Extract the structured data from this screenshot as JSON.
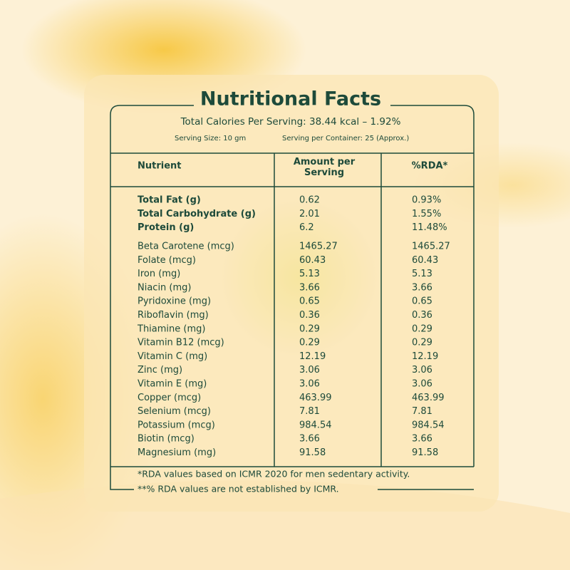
{
  "title": "Nutritional Facts",
  "subtitle": "Total Calories Per Serving: 38.44 kcal – 1.92%",
  "serving_size": "Serving Size: 10 gm",
  "servings_per_container": "Serving per Container: 25 (Approx.)",
  "table": {
    "headers": [
      "Nutrient",
      "Amount per Serving",
      "%RDA*"
    ],
    "rows": [
      [
        "Total Fat (g)",
        "0.62",
        "0.93%"
      ],
      [
        "Total Carbohydrate (g)",
        "2.01",
        "1.55%"
      ],
      [
        "Protein (g)",
        "6.2",
        "11.48%"
      ],
      [
        "Beta Carotene (mcg)",
        "1465.27",
        "1465.27"
      ],
      [
        "Folate (mcg)",
        "60.43",
        "60.43"
      ],
      [
        "Iron (mg)",
        "5.13",
        "5.13"
      ],
      [
        "Niacin (mg)",
        "3.66",
        "3.66"
      ],
      [
        "Pyridoxine (mg)",
        "0.65",
        "0.65"
      ],
      [
        "Riboflavin (mg)",
        "0.36",
        "0.36"
      ],
      [
        "Thiamine (mg)",
        "0.29",
        "0.29"
      ],
      [
        "Vitamin B12 (mcg)",
        "0.29",
        "0.29"
      ],
      [
        "Vitamin C (mg)",
        "12.19",
        "12.19"
      ],
      [
        "Zinc (mg)",
        "3.06",
        "3.06"
      ],
      [
        "Vitamin E (mg)",
        "3.06",
        "3.06"
      ],
      [
        "Copper (mcg)",
        "463.99",
        "463.99"
      ],
      [
        "Selenium (mcg)",
        "7.81",
        "7.81"
      ],
      [
        "Potassium (mcg)",
        "984.54",
        "984.54"
      ],
      [
        "Biotin (mcg)",
        "3.66",
        "3.66"
      ],
      [
        "Magnesium (mg)",
        "91.58",
        "91.58"
      ]
    ]
  },
  "footnotes": [
    "*RDA values based on ICMR 2020 for men sedentary activity.",
    "**% RDA values are not established by ICMR."
  ]
}
